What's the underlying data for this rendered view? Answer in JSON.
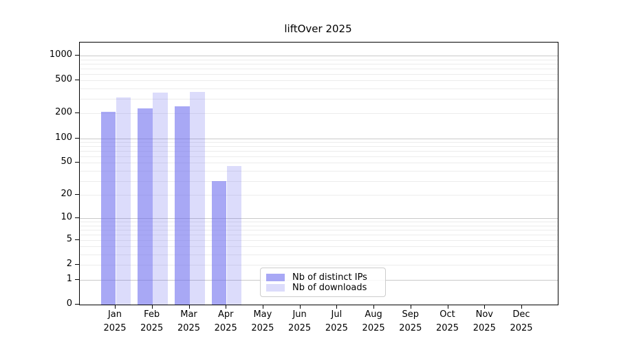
{
  "chart_data": {
    "type": "bar",
    "title": "liftOver 2025",
    "categories": [
      "Jan",
      "Feb",
      "Mar",
      "Apr",
      "May",
      "Jun",
      "Jul",
      "Aug",
      "Sep",
      "Oct",
      "Nov",
      "Dec"
    ],
    "x_year_label": "2025",
    "series": [
      {
        "name": "Nb of distinct IPs",
        "color": "#6666ee",
        "opacity": 0.57,
        "values": [
          210,
          230,
          245,
          30,
          0,
          0,
          0,
          0,
          0,
          0,
          0,
          0
        ]
      },
      {
        "name": "Nb of downloads",
        "color": "#6666ee",
        "opacity": 0.23,
        "values": [
          315,
          360,
          365,
          46,
          0,
          0,
          0,
          0,
          0,
          0,
          0,
          0
        ]
      }
    ],
    "y_axis": {
      "scale": "log1p",
      "tick_values": [
        0,
        1,
        2,
        5,
        10,
        20,
        50,
        100,
        200,
        500,
        1000
      ],
      "axis_top_value": 1434
    },
    "grid": {
      "major_lines": [
        1,
        10,
        100,
        1000
      ],
      "minor_lines": [
        2,
        3,
        4,
        5,
        6,
        7,
        8,
        9,
        20,
        30,
        40,
        50,
        60,
        70,
        80,
        90,
        200,
        300,
        400,
        500,
        600,
        700,
        800,
        900
      ],
      "major_color": "#c9c9c9",
      "minor_color": "#ececec"
    },
    "legend": {
      "entries": [
        "Nb of distinct IPs",
        "Nb of downloads"
      ],
      "position": "lower-center"
    }
  }
}
